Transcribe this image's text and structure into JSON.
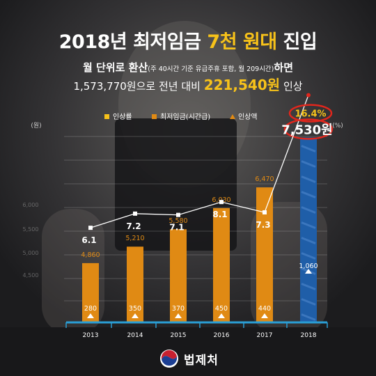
{
  "header": {
    "title_pre": "2018년 최저임금 ",
    "title_hl": "7천 원대",
    "title_post": " 진입",
    "sub1_pre": "월 단위로 환산",
    "sub1_small": "(주 40시간 기준 유급주휴 포함, 월 209시간)",
    "sub1_post": "하면",
    "sub2_pre": "1,573,770원으로 전년 대비 ",
    "sub2_big": "221,540원",
    "sub2_post": " 인상"
  },
  "footer": {
    "agency": "법제처"
  },
  "colors": {
    "bar": "#e08a14",
    "bar_highlight": "#1f5ea8",
    "axis": "#2a9fd6",
    "line": "#ffffff",
    "accent": "#f7c21a",
    "circle": "#e1261c"
  },
  "chart_data": {
    "type": "bar",
    "categories": [
      "2013",
      "2014",
      "2015",
      "2016",
      "2017",
      "2018"
    ],
    "series": [
      {
        "name": "최저임금(시간급)",
        "values": [
          4860,
          5210,
          5580,
          6030,
          6470,
          7530
        ],
        "labels": [
          "4,860",
          "5,210",
          "5,580",
          "6,030",
          "6,470",
          "7,530원"
        ]
      },
      {
        "name": "인상률",
        "values": [
          6.1,
          7.2,
          7.1,
          8.1,
          7.3,
          16.4
        ],
        "labels": [
          "6.1",
          "7.2",
          "7.1",
          "8.1",
          "7.3",
          "16.4%"
        ]
      },
      {
        "name": "인상액",
        "values": [
          280,
          350,
          370,
          450,
          440,
          1060
        ],
        "labels": [
          "280",
          "350",
          "370",
          "450",
          "440",
          "1,060"
        ]
      }
    ],
    "legend": [
      "인상률",
      "최저임금(시간급)",
      "인상액"
    ],
    "legend_position": "top",
    "y_unit_left": "(원)",
    "y_unit_right": "(%)",
    "y_ticks_left": [
      "6,000",
      "5,500",
      "5,000",
      "4,500"
    ],
    "ylim": [
      3600,
      7700
    ],
    "grid": true
  }
}
